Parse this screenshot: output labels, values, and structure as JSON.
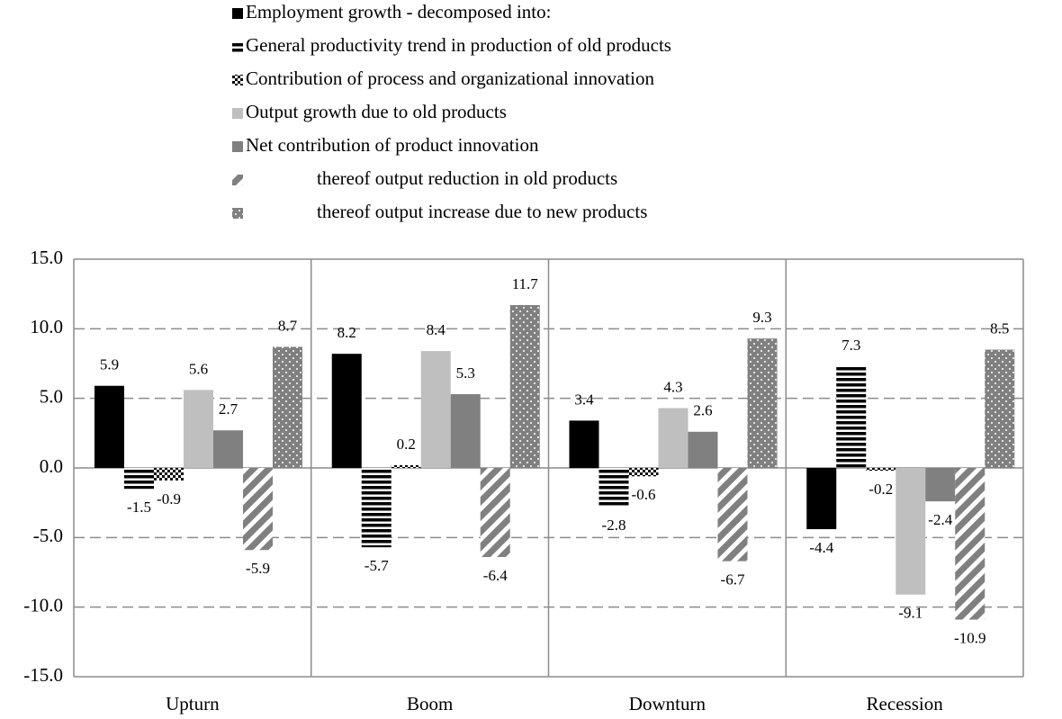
{
  "chart_data": {
    "type": "bar",
    "categories": [
      "Upturn",
      "Boom",
      "Downturn",
      "Recession"
    ],
    "series": [
      {
        "name": "Employment growth - decomposed into:",
        "color": "#000000",
        "pattern": "solid",
        "values": [
          5.9,
          8.2,
          3.4,
          -4.4
        ]
      },
      {
        "name": "General productivity trend in production of old products",
        "color": "#000000",
        "pattern": "horizontal-stripes",
        "values": [
          -1.5,
          -5.7,
          -2.8,
          7.3
        ]
      },
      {
        "name": "Contribution of process and organizational innovation",
        "color": "#000000",
        "pattern": "checker",
        "values": [
          -0.9,
          0.2,
          -0.6,
          -0.2
        ]
      },
      {
        "name": "Output growth due to old products",
        "color": "#bfbfbf",
        "pattern": "solid",
        "values": [
          5.6,
          8.4,
          4.3,
          -9.1
        ]
      },
      {
        "name": "Net contribution of product innovation",
        "color": "#808080",
        "pattern": "solid",
        "values": [
          2.7,
          5.3,
          2.6,
          -2.4
        ]
      },
      {
        "name": "thereof output reduction in old products",
        "color": "#808080",
        "pattern": "diagonal-stripes",
        "values": [
          -5.9,
          -6.4,
          -6.7,
          -10.9
        ]
      },
      {
        "name": "thereof output increase due to new products",
        "color": "#808080",
        "pattern": "dots",
        "values": [
          8.7,
          11.7,
          9.3,
          8.5
        ]
      }
    ],
    "ylim": [
      -15,
      15
    ],
    "yticks": [
      {
        "value": -15,
        "label": "-15.0"
      },
      {
        "value": -10,
        "label": "-10.0"
      },
      {
        "value": -5,
        "label": "-5.0"
      },
      {
        "value": 0,
        "label": "0.0"
      },
      {
        "value": 5,
        "label": "5.0"
      },
      {
        "value": 10,
        "label": "10.0"
      },
      {
        "value": 15,
        "label": "15.0"
      }
    ],
    "grid": true,
    "legend": "top"
  }
}
